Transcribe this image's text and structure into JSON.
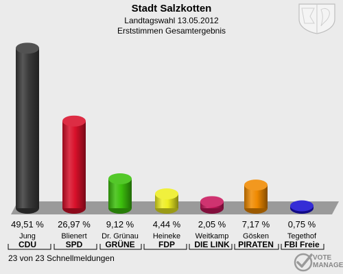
{
  "header": {
    "title": "Stadt Salzkotten",
    "subtitle": "Landtagswahl 13.05.2012",
    "subtitle2": "Erststimmen Gesamtergebnis"
  },
  "chart_data": {
    "type": "bar",
    "title": "Stadt Salzkotten",
    "subtitle": "Landtagswahl 13.05.2012 — Erststimmen Gesamtergebnis",
    "categories": [
      "CDU",
      "SPD",
      "GRÜNE",
      "FDP",
      "DIE LINKE",
      "PIRATEN",
      "FBI Freie"
    ],
    "candidates": [
      "Jung",
      "Blienert",
      "Dr. Grünau",
      "Heineke",
      "Weitkamp",
      "Gösken",
      "Tegethof"
    ],
    "values": [
      49.51,
      26.97,
      9.12,
      4.44,
      2.05,
      7.17,
      0.75
    ],
    "value_labels": [
      "49,51 %",
      "26,97 %",
      "9,12 %",
      "4,44 %",
      "2,05 %",
      "7,17 %",
      "0,75 %"
    ],
    "party_labels": [
      "CDU",
      "SPD",
      "GRÜNE",
      "FDP",
      "DIE LINK",
      "PIRATEN",
      "FBI Freie"
    ],
    "colors": [
      "#3a3a3a",
      "#d8102a",
      "#3cc00c",
      "#eeee22",
      "#c8175c",
      "#f08a00",
      "#1a10d0"
    ],
    "ylim": [
      0,
      50
    ],
    "xlabel": "",
    "ylabel": "",
    "grid": false,
    "legend": "none"
  },
  "footer": {
    "status": "23 von 23 Schnellmeldungen",
    "brand_line1": "VOTE",
    "brand_line2": "MANAGER"
  }
}
